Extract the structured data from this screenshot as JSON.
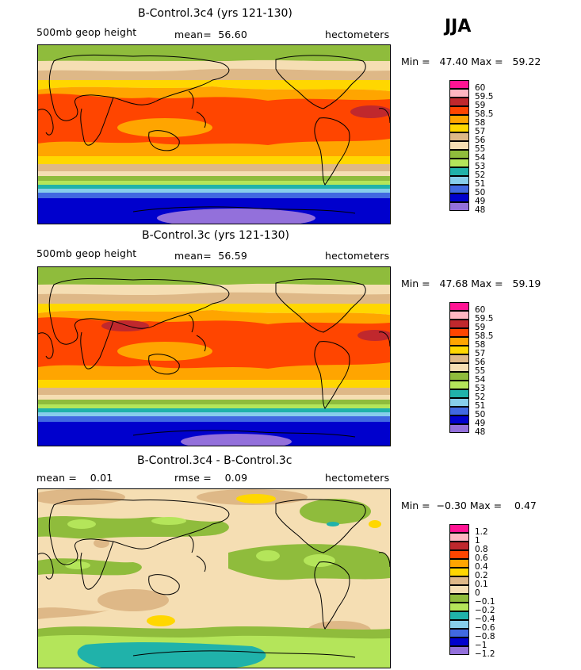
{
  "season": "JJA",
  "panels": [
    {
      "title": "B-Control.3c4 (yrs 121-130)",
      "left_label": "500mb geop height",
      "mid_label": "mean=  56.60",
      "units": "hectometers",
      "minmax": "Min =   47.40 Max =   59.22",
      "legend": {
        "labels": [
          "60",
          "59.5",
          "59",
          "58.5",
          "58",
          "57",
          "56",
          "55",
          "54",
          "53",
          "52",
          "51",
          "50",
          "49",
          "48"
        ],
        "colors": [
          "#ff1493",
          "#ffb6c1",
          "#c0282d",
          "#ff4500",
          "#ffa500",
          "#ffd700",
          "#deb887",
          "#f5deb3",
          "#8fbc3c",
          "#b4e55a",
          "#20b2aa",
          "#87ceeb",
          "#4169e1",
          "#0000cd",
          "#9370db"
        ]
      }
    },
    {
      "title": "B-Control.3c (yrs 121-130)",
      "left_label": "500mb geop height",
      "mid_label": "mean=  56.59",
      "units": "hectometers",
      "minmax": "Min =   47.68 Max =   59.19",
      "legend": {
        "labels": [
          "60",
          "59.5",
          "59",
          "58.5",
          "58",
          "57",
          "56",
          "55",
          "54",
          "53",
          "52",
          "51",
          "50",
          "49",
          "48"
        ],
        "colors": [
          "#ff1493",
          "#ffb6c1",
          "#c0282d",
          "#ff4500",
          "#ffa500",
          "#ffd700",
          "#deb887",
          "#f5deb3",
          "#8fbc3c",
          "#b4e55a",
          "#20b2aa",
          "#87ceeb",
          "#4169e1",
          "#0000cd",
          "#9370db"
        ]
      }
    },
    {
      "title": "B-Control.3c4 - B-Control.3c",
      "left_label": "mean =    0.01",
      "mid_label": "rmse =    0.09",
      "units": "hectometers",
      "minmax": "Min =  −0.30 Max =    0.47",
      "legend": {
        "labels": [
          "1.2",
          "1",
          "0.8",
          "0.6",
          "0.4",
          "0.2",
          "0.1",
          "0",
          "−0.1",
          "−0.2",
          "−0.4",
          "−0.6",
          "−0.8",
          "−1",
          "−1.2"
        ],
        "colors": [
          "#ff1493",
          "#ffb6c1",
          "#c0282d",
          "#ff4500",
          "#ffa500",
          "#ffd700",
          "#deb887",
          "#f5deb3",
          "#8fbc3c",
          "#b4e55a",
          "#20b2aa",
          "#87ceeb",
          "#4169e1",
          "#0000cd",
          "#9370db"
        ]
      }
    }
  ],
  "chart_data": [
    {
      "type": "heatmap",
      "title": "B-Control.3c4 (yrs 121-130)",
      "variable": "500mb geop height",
      "units": "hectometers",
      "mean": 56.6,
      "min": 47.4,
      "max": 59.22,
      "colorbar_levels": [
        48,
        49,
        50,
        51,
        52,
        53,
        54,
        55,
        56,
        57,
        58,
        58.5,
        59,
        59.5,
        60
      ],
      "zonal_bands_by_latitude": [
        {
          "lat": 80,
          "level": 54
        },
        {
          "lat": 60,
          "level": 55
        },
        {
          "lat": 45,
          "level": 56
        },
        {
          "lat": 35,
          "level": 57
        },
        {
          "lat": 25,
          "level": 58.5
        },
        {
          "lat": 10,
          "level": 58.5
        },
        {
          "lat": 0,
          "level": 58
        },
        {
          "lat": -15,
          "level": 57
        },
        {
          "lat": -25,
          "level": 56
        },
        {
          "lat": -35,
          "level": 55
        },
        {
          "lat": -45,
          "level": 54
        },
        {
          "lat": -50,
          "level": 53
        },
        {
          "lat": -55,
          "level": 52
        },
        {
          "lat": -58,
          "level": 51
        },
        {
          "lat": -62,
          "level": 50
        },
        {
          "lat": -68,
          "level": 49
        },
        {
          "lat": -80,
          "level": 48
        }
      ]
    },
    {
      "type": "heatmap",
      "title": "B-Control.3c (yrs 121-130)",
      "variable": "500mb geop height",
      "units": "hectometers",
      "mean": 56.59,
      "min": 47.68,
      "max": 59.19,
      "colorbar_levels": [
        48,
        49,
        50,
        51,
        52,
        53,
        54,
        55,
        56,
        57,
        58,
        58.5,
        59,
        59.5,
        60
      ],
      "zonal_bands_by_latitude": [
        {
          "lat": 80,
          "level": 54
        },
        {
          "lat": 60,
          "level": 55
        },
        {
          "lat": 45,
          "level": 56
        },
        {
          "lat": 35,
          "level": 57
        },
        {
          "lat": 25,
          "level": 58.5
        },
        {
          "lat": 10,
          "level": 58.5
        },
        {
          "lat": 0,
          "level": 58
        },
        {
          "lat": -15,
          "level": 57
        },
        {
          "lat": -25,
          "level": 56
        },
        {
          "lat": -35,
          "level": 55
        },
        {
          "lat": -45,
          "level": 54
        },
        {
          "lat": -50,
          "level": 53
        },
        {
          "lat": -55,
          "level": 52
        },
        {
          "lat": -58,
          "level": 51
        },
        {
          "lat": -62,
          "level": 50
        },
        {
          "lat": -68,
          "level": 49
        },
        {
          "lat": -80,
          "level": 48
        }
      ]
    },
    {
      "type": "heatmap",
      "title": "B-Control.3c4 - B-Control.3c",
      "units": "hectometers",
      "mean": 0.01,
      "rmse": 0.09,
      "min": -0.3,
      "max": 0.47,
      "colorbar_levels": [
        -1.2,
        -1,
        -0.8,
        -0.6,
        -0.4,
        -0.2,
        -0.1,
        0,
        0.1,
        0.2,
        0.4,
        0.6,
        0.8,
        1,
        1.2
      ],
      "dominant_level": 0.1
    }
  ]
}
